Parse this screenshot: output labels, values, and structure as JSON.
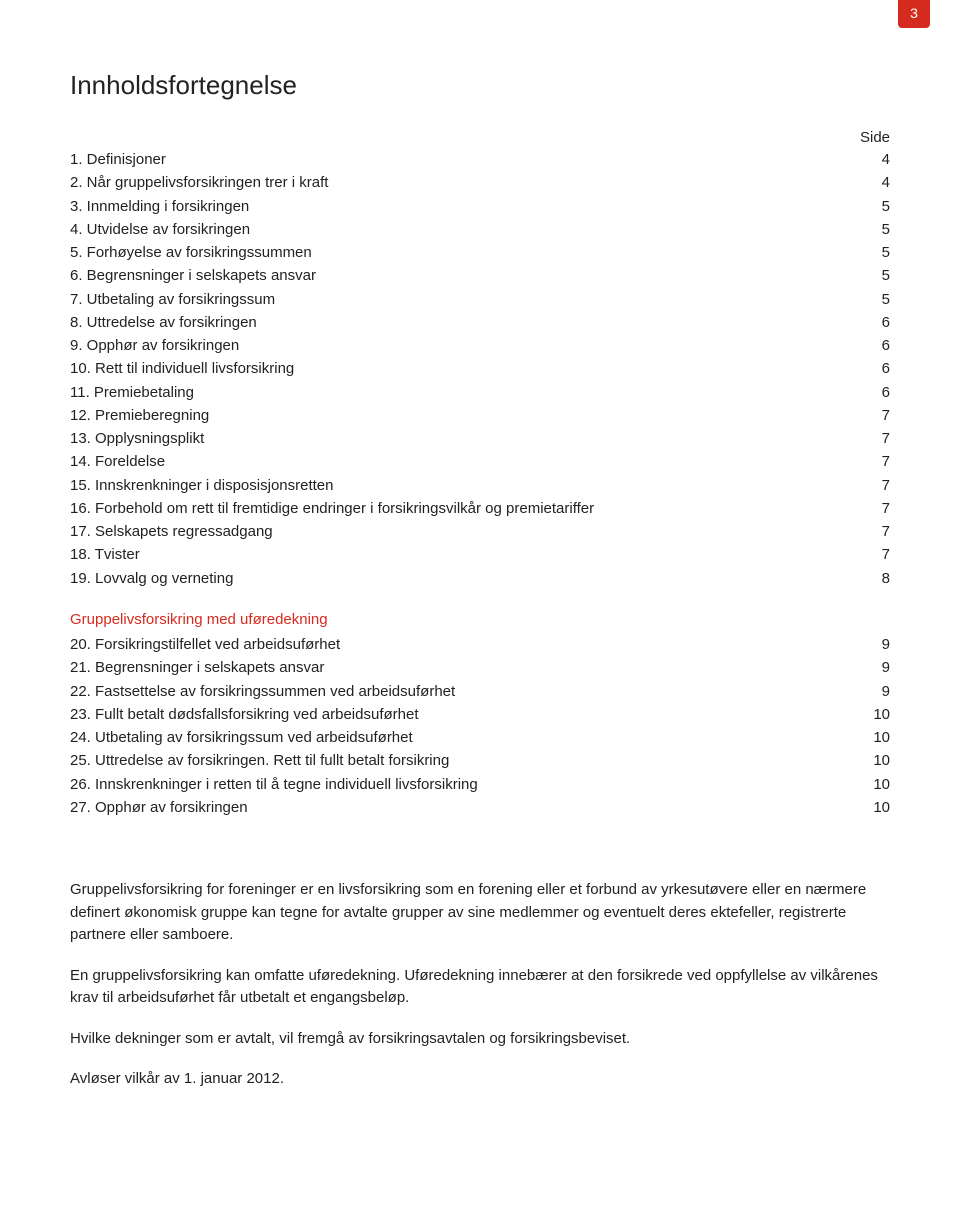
{
  "page_number_tab": "3",
  "title": "Innholdsfortegnelse",
  "page_header": "Side",
  "colors": {
    "accent": "#d52b1e",
    "text": "#222222",
    "background": "#ffffff"
  },
  "typography": {
    "title_fontsize_pt": 20,
    "body_fontsize_pt": 11,
    "line_height": 1.55
  },
  "toc_section1": [
    {
      "label": "1. Definisjoner",
      "page": "4"
    },
    {
      "label": "2. Når gruppelivsforsikringen trer i kraft",
      "page": "4"
    },
    {
      "label": "3. Innmelding i forsikringen",
      "page": "5"
    },
    {
      "label": "4. Utvidelse av forsikringen",
      "page": "5"
    },
    {
      "label": "5. Forhøyelse av forsikringssummen",
      "page": "5"
    },
    {
      "label": "6. Begrensninger i selskapets ansvar",
      "page": "5"
    },
    {
      "label": "7. Utbetaling av forsikringssum",
      "page": "5"
    },
    {
      "label": "8. Uttredelse av forsikringen",
      "page": "6"
    },
    {
      "label": "9. Opphør av forsikringen",
      "page": "6"
    },
    {
      "label": "10. Rett til individuell livsforsikring",
      "page": "6"
    },
    {
      "label": "11. Premiebetaling",
      "page": "6"
    },
    {
      "label": "12. Premieberegning",
      "page": "7"
    },
    {
      "label": "13. Opplysningsplikt",
      "page": "7"
    },
    {
      "label": "14. Foreldelse",
      "page": "7"
    },
    {
      "label": "15. Innskrenkninger i disposisjonsretten",
      "page": "7"
    },
    {
      "label": "16. Forbehold om rett til fremtidige endringer i forsikringsvilkår og premietariffer",
      "page": "7"
    },
    {
      "label": "17. Selskapets regressadgang",
      "page": "7"
    },
    {
      "label": "18. Tvister",
      "page": "7"
    },
    {
      "label": "19. Lovvalg og verneting",
      "page": "8"
    }
  ],
  "section2_heading": "Gruppelivsforsikring med uføredekning",
  "toc_section2": [
    {
      "label": "20. Forsikringstilfellet ved arbeidsuførhet",
      "page": "9"
    },
    {
      "label": "21. Begrensninger i selskapets ansvar",
      "page": "9"
    },
    {
      "label": "22. Fastsettelse av forsikringssummen ved arbeidsuførhet",
      "page": "9"
    },
    {
      "label": "23. Fullt betalt dødsfallsforsikring ved arbeidsuførhet",
      "page": "10"
    },
    {
      "label": "24. Utbetaling av forsikringssum ved arbeidsuførhet",
      "page": "10"
    },
    {
      "label": "25. Uttredelse av forsikringen. Rett til fullt betalt forsikring",
      "page": "10"
    },
    {
      "label": "26. Innskrenkninger i retten til å tegne individuell livsforsikring",
      "page": "10"
    },
    {
      "label": "27. Opphør av forsikringen",
      "page": "10"
    }
  ],
  "paragraphs": [
    "Gruppelivsforsikring for foreninger er en livsforsikring som en forening eller et forbund av yrkesutøvere eller en nærmere definert økonomisk gruppe kan tegne for avtalte grupper av sine medlemmer og eventuelt deres ektefeller, registrerte partnere eller samboere.",
    "En gruppelivsforsikring kan omfatte uføredekning. Uføredekning innebærer at den forsikrede ved oppfyllelse av vilkårenes krav til arbeidsuførhet får utbetalt et engangsbeløp.",
    "Hvilke dekninger som er avtalt, vil fremgå av forsikringsavtalen og forsikringsbeviset.",
    "Avløser vilkår av 1. januar 2012."
  ]
}
